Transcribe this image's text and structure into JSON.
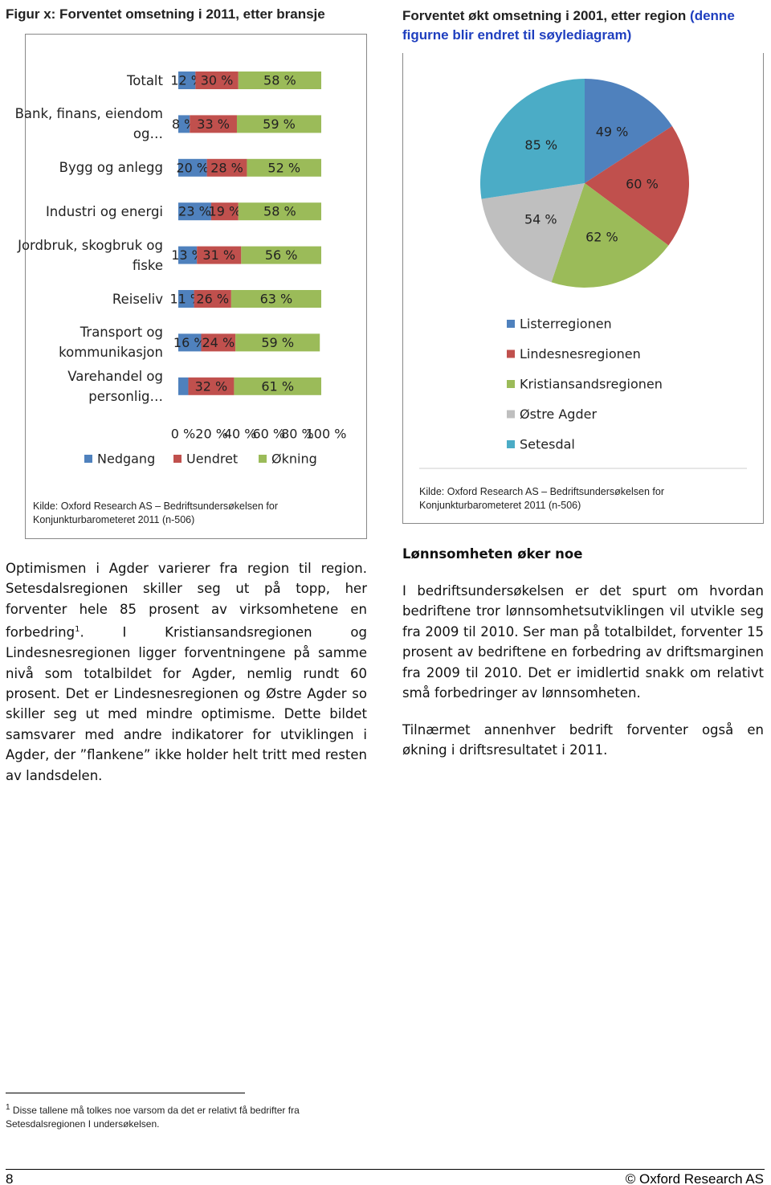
{
  "figure_left_caption": "Figur x: Forventet omsetning i 2011, etter bransje",
  "figure_right_caption": "Forventet økt omsetning i 2001, etter region",
  "figure_right_note": "(denne figurne blir endret til søylediagram)",
  "chart_data": [
    {
      "type": "stacked-bar-horizontal",
      "categories": [
        "Totalt",
        "Bank, finans, eiendom og…",
        "Bygg og anlegg",
        "Industri og energi",
        "Jordbruk, skogbruk og fiske",
        "Reiseliv",
        "Transport og kommunikasjon",
        "Varehandel og personlig…"
      ],
      "series": [
        {
          "name": "Nedgang",
          "color": "#4f81bd",
          "values": [
            12,
            8,
            20,
            23,
            13,
            11,
            16,
            7
          ],
          "value_labels": [
            "12 %",
            "8 %",
            "20 %",
            "23 %",
            "13 %",
            "11 %",
            "16 %",
            null
          ]
        },
        {
          "name": "Uendret",
          "color": "#c0504d",
          "values": [
            30,
            33,
            28,
            19,
            31,
            26,
            24,
            32
          ],
          "value_labels": [
            "30 %",
            "33 %",
            "28 %",
            "19 %",
            "31 %",
            "26 %",
            "24 %",
            "32 %"
          ]
        },
        {
          "name": "Økning",
          "color": "#9bbb59",
          "values": [
            58,
            59,
            52,
            58,
            56,
            63,
            59,
            61
          ],
          "value_labels": [
            "58 %",
            "59 %",
            "52 %",
            "58 %",
            "56 %",
            "63 %",
            "59 %",
            "61 %"
          ]
        }
      ],
      "xlim": [
        0,
        100
      ],
      "xticks": [
        {
          "value": 0,
          "label": "0 %"
        },
        {
          "value": 20,
          "label": "20 %"
        },
        {
          "value": 40,
          "label": "40 %"
        },
        {
          "value": 60,
          "label": "60 %"
        },
        {
          "value": 80,
          "label": "80 %"
        },
        {
          "value": 100,
          "label": "100 %"
        }
      ],
      "legend": "bottom",
      "source": "Kilde: Oxford Research AS – Bedriftsundersøkelsen for Konjunkturbarometeret 2011 (n-506)"
    },
    {
      "type": "pie",
      "categories": [
        "Listerregionen",
        "Lindesnesregionen",
        "Kristiansandsregionen",
        "Østre Agder",
        "Setesdal"
      ],
      "values": [
        49,
        60,
        62,
        54,
        85
      ],
      "value_labels": [
        "49 %",
        "60 %",
        "62 %",
        "54 %",
        "85 %"
      ],
      "colors": [
        "#4f81bd",
        "#c0504d",
        "#9bbb59",
        "#bfbfbf",
        "#4bacc6"
      ],
      "legend": "bottom",
      "source": "Kilde: Oxford Research AS – Bedriftsundersøkelsen for Konjunkturbarometeret 2011 (n-506)"
    }
  ],
  "left_text": {
    "part1": "Optimismen i Agder varierer fra region til region. Setesdalsregionen skiller seg ut på topp, her forventer hele 85 prosent av virksomhetene en forbedring",
    "footnote_ref": "1",
    "part2": ". I Kristiansandsregionen og Lindesnesregionen ligger forventningene på samme nivå som totalbildet for Agder, nemlig rundt 60 prosent. Det er Lindesnesregionen og Østre Agder so skiller seg ut med mindre optimisme. Dette bildet samsvarer med andre indikatorer for utviklingen i Agder, der ”flankene” ikke holder helt tritt med resten av landsdelen."
  },
  "right_text": {
    "heading": "Lønnsomheten øker noe",
    "paragraphs": [
      "I bedriftsundersøkelsen er det spurt om hvordan bedriftene tror lønnsomhetsutviklingen vil utvikle seg fra 2009 til 2010. Ser man på totalbildet, forventer 15 prosent av bedriftene en forbedring av driftsmarginen fra 2009 til 2010. Det er imidlertid snakk om relativt små forbedringer av lønnsomheten.",
      "Tilnærmet annenhver bedrift forventer også en økning i driftsresultatet i 2011."
    ]
  },
  "footnote": {
    "marker": "1",
    "text": "Disse tallene må tolkes noe varsom da det er relativt få bedrifter fra Setesdalsregionen I undersøkelsen."
  },
  "footer": {
    "page_number": "8",
    "copyright": "© Oxford Research AS"
  }
}
